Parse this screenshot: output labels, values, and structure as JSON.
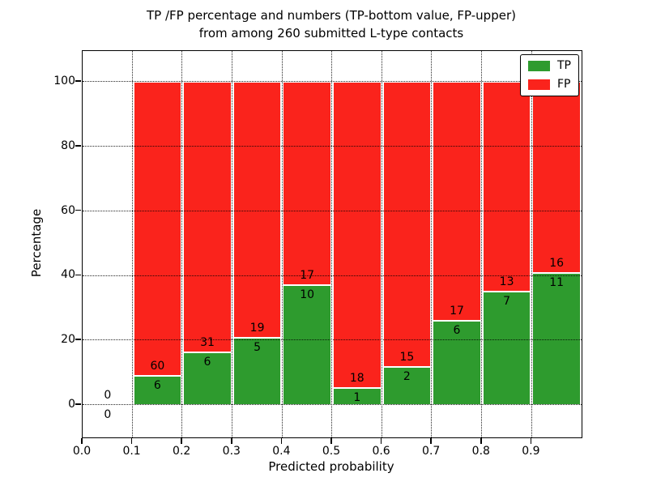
{
  "title": {
    "line1": "TP /FP percentage and numbers (TP-bottom value, FP-upper)",
    "line2": "from among 260 submitted L-type contacts"
  },
  "chart_data": {
    "type": "bar",
    "subtype": "stacked_percentage",
    "title": "TP /FP percentage and numbers (TP-bottom value, FP-upper) from among 260 submitted L-type contacts",
    "xlabel": "Predicted probability",
    "ylabel": "Percentage",
    "total_contacts": 260,
    "xlim": [
      0.0,
      1.0
    ],
    "ylim": [
      -10,
      110
    ],
    "bin_width": 0.1,
    "grid": "dotted",
    "legend_position": "upper right",
    "x_tick_labels": [
      "0.0",
      "0.1",
      "0.2",
      "0.3",
      "0.4",
      "0.5",
      "0.6",
      "0.7",
      "0.8",
      "0.9"
    ],
    "y_ticks": [
      0,
      20,
      40,
      60,
      80,
      100
    ],
    "categories": [
      "0.0-0.1",
      "0.1-0.2",
      "0.2-0.3",
      "0.3-0.4",
      "0.4-0.5",
      "0.5-0.6",
      "0.6-0.7",
      "0.7-0.8",
      "0.8-0.9",
      "0.9-1.0"
    ],
    "series": [
      {
        "name": "TP",
        "color": "#2e9b2e",
        "counts": [
          0,
          6,
          6,
          5,
          10,
          1,
          2,
          6,
          7,
          11
        ]
      },
      {
        "name": "FP",
        "color": "#fa231c",
        "counts": [
          0,
          60,
          31,
          19,
          17,
          18,
          15,
          17,
          13,
          16
        ]
      }
    ],
    "tp_percent": [
      0,
      9.1,
      16.2,
      20.8,
      37.0,
      5.3,
      11.8,
      26.1,
      35.0,
      40.7
    ],
    "colors": {
      "tp": "#2e9b2e",
      "fp": "#fa231c",
      "bar_edge": "#ffffff",
      "background": "#ffffff",
      "text": "#000000"
    },
    "legend": {
      "entries": [
        {
          "label": "TP",
          "color": "#2e9b2e"
        },
        {
          "label": "FP",
          "color": "#fa231c"
        }
      ]
    }
  }
}
